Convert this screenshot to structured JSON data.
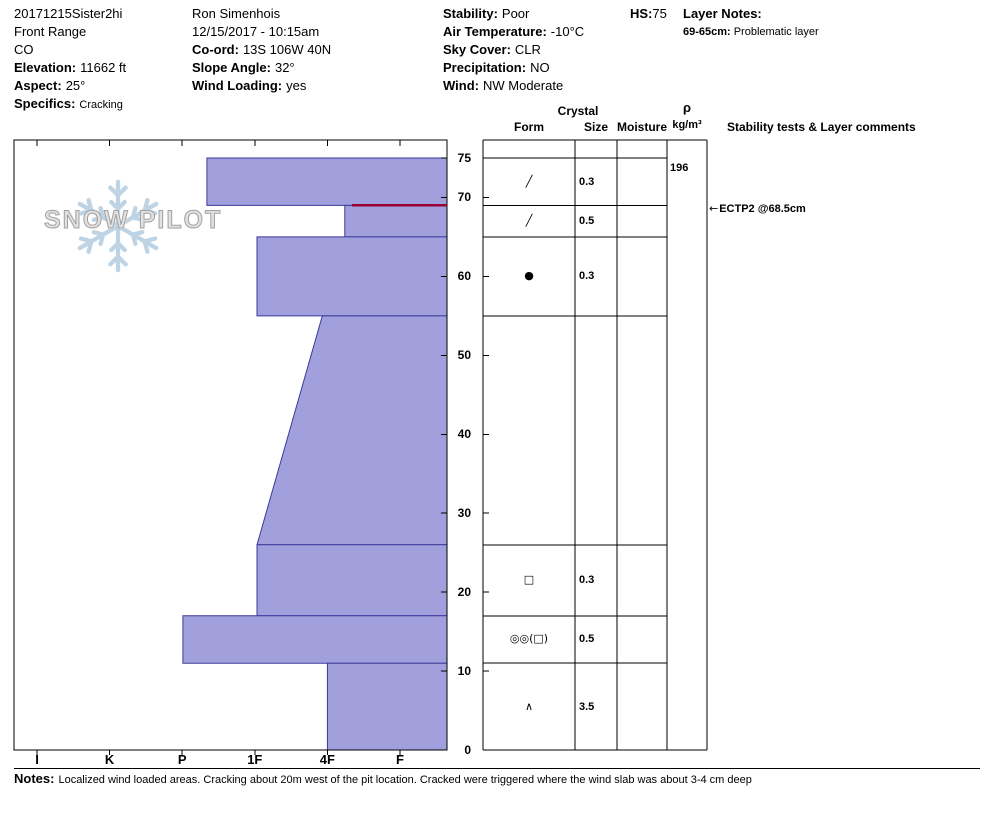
{
  "header": {
    "left": {
      "pit_name": "20171215Sister2hi",
      "area": "Front Range",
      "state": "CO",
      "elevation": {
        "label": "Elevation:",
        "value": "11662 ft"
      },
      "aspect": {
        "label": "Aspect:",
        "value": "25°"
      },
      "specifics": {
        "label": "Specifics:",
        "value": "Cracking"
      }
    },
    "middle": {
      "observer": "Ron Simenhois",
      "datetime": "12/15/2017 - 10:15am",
      "coord": {
        "label": "Co-ord:",
        "value": "13S 106W 40N"
      },
      "slope_angle": {
        "label": "Slope Angle:",
        "value": "32°"
      },
      "wind_loading": {
        "label": "Wind Loading:",
        "value": "yes"
      }
    },
    "right": {
      "stability": {
        "label": "Stability:",
        "value": "Poor"
      },
      "air_temperature": {
        "label": "Air Temperature:",
        "value": "-10°C"
      },
      "sky_cover": {
        "label": "Sky Cover:",
        "value": "CLR"
      },
      "precipitation": {
        "label": "Precipitation:",
        "value": "NO"
      },
      "wind": {
        "label": "Wind:",
        "value": "NW Moderate"
      }
    },
    "hs": {
      "label": "HS:",
      "value": "75"
    },
    "layer_notes": {
      "label": "Layer Notes:",
      "range": "69-65cm:",
      "text": "Problematic layer"
    }
  },
  "logo": {
    "text": "SNOW PILOT"
  },
  "table": {
    "crystal": "Crystal",
    "form": "Form",
    "size": "Size",
    "moisture": "Moisture",
    "density_symbol": "ρ",
    "density_unit": "kg/m³",
    "comments": "Stability tests & Layer comments"
  },
  "chart_data": {
    "type": "bar",
    "subtype": "snow-hardness-profile",
    "hardness_ticks": [
      "I",
      "K",
      "P",
      "1F",
      "4F",
      "F"
    ],
    "depth_labels": [
      75,
      70,
      60,
      50,
      40,
      30,
      20,
      10,
      0
    ],
    "depth_unit": "cm",
    "snow_height_cm": 75,
    "bar_fill": "#a2a0dc",
    "bar_stroke": "#3a3a9c",
    "problem_line": {
      "depth_cm": 69,
      "hardness_from": 4.34,
      "color": "#990033"
    },
    "stability_test": {
      "text": "ECTP2 @68.5cm",
      "depth_cm": 68.5
    },
    "layers": [
      {
        "top_cm": 75,
        "bottom_cm": 69,
        "h_top": 2.34,
        "h_bot": 2.34,
        "hardness": "P-",
        "form": "╱",
        "size_mm": "0.3",
        "moisture": "",
        "density": "196"
      },
      {
        "top_cm": 69,
        "bottom_cm": 65,
        "h_top": 4.24,
        "h_bot": 4.24,
        "hardness": "4F-",
        "form": "╱",
        "size_mm": "0.5",
        "moisture": ""
      },
      {
        "top_cm": 65,
        "bottom_cm": 55,
        "h_top": 3.03,
        "h_bot": 3.03,
        "hardness": "1F",
        "form": "●",
        "size_mm": "0.3",
        "moisture": ""
      },
      {
        "top_cm": 55,
        "bottom_cm": 26,
        "h_top": 3.93,
        "h_bot": 3.03,
        "hardness": "4F to 1F",
        "form": "",
        "size_mm": "",
        "moisture": ""
      },
      {
        "top_cm": 26,
        "bottom_cm": 17,
        "h_top": 3.03,
        "h_bot": 3.03,
        "hardness": "1F",
        "form": "□",
        "size_mm": "0.3",
        "moisture": ""
      },
      {
        "top_cm": 17,
        "bottom_cm": 11,
        "h_top": 2.01,
        "h_bot": 2.01,
        "hardness": "P",
        "form": "◎◎(□)",
        "size_mm": "0.5",
        "moisture": ""
      },
      {
        "top_cm": 11,
        "bottom_cm": 0,
        "h_top": 4.0,
        "h_bot": 4.0,
        "hardness": "4F",
        "form": "∧",
        "size_mm": "3.5",
        "moisture": ""
      }
    ]
  },
  "notes": {
    "label": "Notes:",
    "text": "Localized wind loaded areas. Cracking about 20m west of the pit location. Cracked were triggered where the wind slab was about 3-4 cm deep"
  }
}
